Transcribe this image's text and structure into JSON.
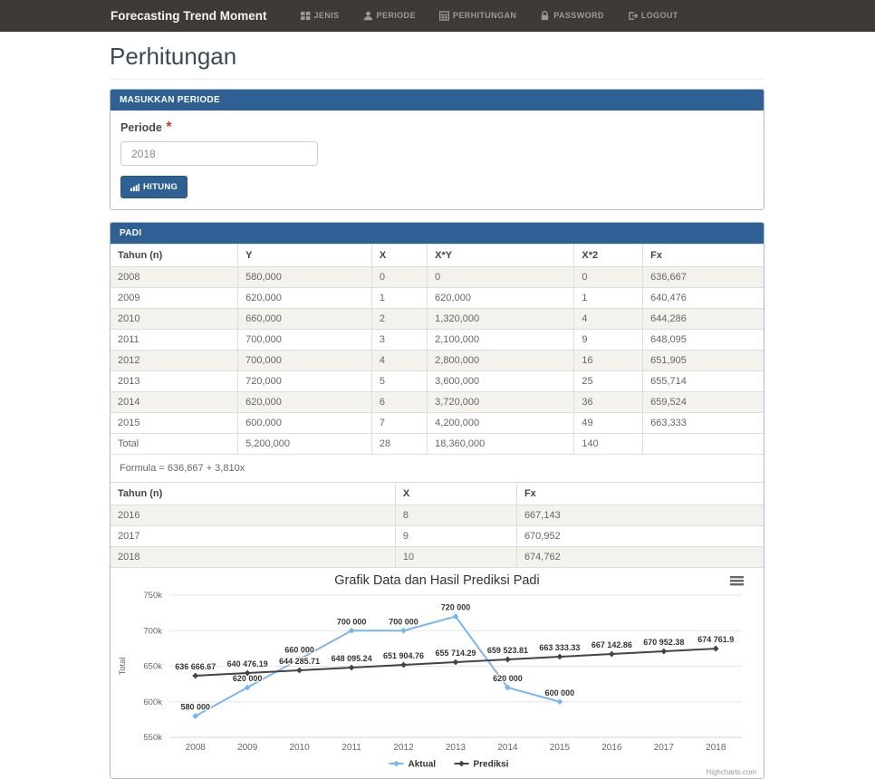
{
  "colors": {
    "navbar_bg": "#3e3a35",
    "panel_header_bg": "#2e6093",
    "aktual_color": "#7cb5ec",
    "prediksi_color": "#434348",
    "stripe_bg": "#f4f2ed"
  },
  "navbar": {
    "brand": "Forecasting Trend Moment",
    "items": [
      {
        "label": "JENIS",
        "icon": "th-grid-icon"
      },
      {
        "label": "PERIODE",
        "icon": "user-icon"
      },
      {
        "label": "PERHITUNGAN",
        "icon": "table-icon"
      },
      {
        "label": "PASSWORD",
        "icon": "lock-icon"
      },
      {
        "label": "LOGOUT",
        "icon": "logout-icon"
      }
    ]
  },
  "page_title": "Perhitungan",
  "form_panel": {
    "header": "MASUKKAN PERIODE",
    "field_label": "Periode",
    "required_mark": "*",
    "input_value": "2018",
    "button_label": "HITUNG"
  },
  "results_panel": {
    "header": "PADI",
    "table1": {
      "columns": [
        "Tahun (n)",
        "Y",
        "X",
        "X*Y",
        "X*2",
        "Fx"
      ],
      "rows": [
        [
          "2008",
          "580,000",
          "0",
          "0",
          "0",
          "636,667"
        ],
        [
          "2009",
          "620,000",
          "1",
          "620,000",
          "1",
          "640,476"
        ],
        [
          "2010",
          "660,000",
          "2",
          "1,320,000",
          "4",
          "644,286"
        ],
        [
          "2011",
          "700,000",
          "3",
          "2,100,000",
          "9",
          "648,095"
        ],
        [
          "2012",
          "700,000",
          "4",
          "2,800,000",
          "16",
          "651,905"
        ],
        [
          "2013",
          "720,000",
          "5",
          "3,600,000",
          "25",
          "655,714"
        ],
        [
          "2014",
          "620,000",
          "6",
          "3,720,000",
          "36",
          "659,524"
        ],
        [
          "2015",
          "600,000",
          "7",
          "4,200,000",
          "49",
          "663,333"
        ]
      ],
      "total_row": [
        "Total",
        "5,200,000",
        "28",
        "18,360,000",
        "140",
        ""
      ]
    },
    "formula": "Formula = 636,667 + 3,810x",
    "table2": {
      "columns": [
        "Tahun (n)",
        "X",
        "Fx"
      ],
      "rows": [
        [
          "2016",
          "8",
          "667,143"
        ],
        [
          "2017",
          "9",
          "670,952"
        ],
        [
          "2018",
          "10",
          "674,762"
        ]
      ]
    }
  },
  "chart_data": {
    "type": "line",
    "title": "Grafik Data dan Hasil Prediksi Padi",
    "xlabel": "",
    "ylabel": "Total",
    "categories": [
      "2008",
      "2009",
      "2010",
      "2011",
      "2012",
      "2013",
      "2014",
      "2015",
      "2016",
      "2017",
      "2018"
    ],
    "ylim": [
      550000,
      750000
    ],
    "yticks": [
      {
        "value": 550000,
        "label": "550k"
      },
      {
        "value": 600000,
        "label": "600k"
      },
      {
        "value": 650000,
        "label": "650k"
      },
      {
        "value": 700000,
        "label": "700k"
      },
      {
        "value": 750000,
        "label": "750k"
      }
    ],
    "grid": true,
    "legend_position": "bottom",
    "series": [
      {
        "name": "Aktual",
        "color": "#7cb5ec",
        "marker": "diamond",
        "values": [
          580000,
          620000,
          660000,
          700000,
          700000,
          720000,
          620000,
          600000
        ],
        "labels": [
          "580 000",
          "620 000",
          "660 000",
          "700 000",
          "700 000",
          "720 000",
          "620 000",
          "600 000"
        ]
      },
      {
        "name": "Prediksi",
        "color": "#434348",
        "marker": "diamond",
        "values": [
          636666.67,
          640476.19,
          644285.71,
          648095.24,
          651904.76,
          655714.29,
          659523.81,
          663333.33,
          667142.86,
          670952.38,
          674761.9
        ],
        "labels": [
          "636 666.67",
          "640 476.19",
          "644 285.71",
          "648 095.24",
          "651 904.76",
          "655 714.29",
          "659 523.81",
          "663 333.33",
          "667 142.86",
          "670 952.38",
          "674 761.9"
        ]
      }
    ],
    "credits": "Highcharts.com"
  }
}
